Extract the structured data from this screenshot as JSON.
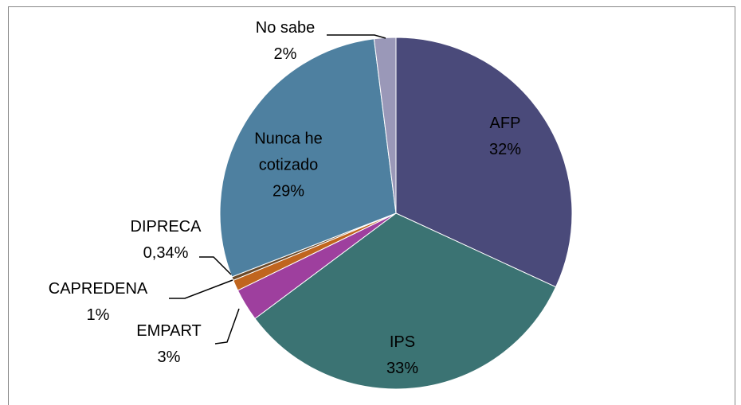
{
  "chart_data": {
    "type": "pie",
    "categories": [
      "AFP",
      "IPS",
      "EMPART",
      "CAPREDENA",
      "DIPRECA",
      "Nunca he cotizado",
      "No sabe"
    ],
    "values": [
      32,
      33,
      3,
      1,
      0.34,
      29,
      2
    ],
    "value_labels": [
      "32%",
      "33%",
      "3%",
      "1%",
      "0,34%",
      "29%",
      "2%"
    ],
    "colors": [
      "#4a4a7a",
      "#3b7373",
      "#9e3f9e",
      "#c0651e",
      "#6b4a2a",
      "#4e80a0",
      "#9a98b8"
    ]
  }
}
